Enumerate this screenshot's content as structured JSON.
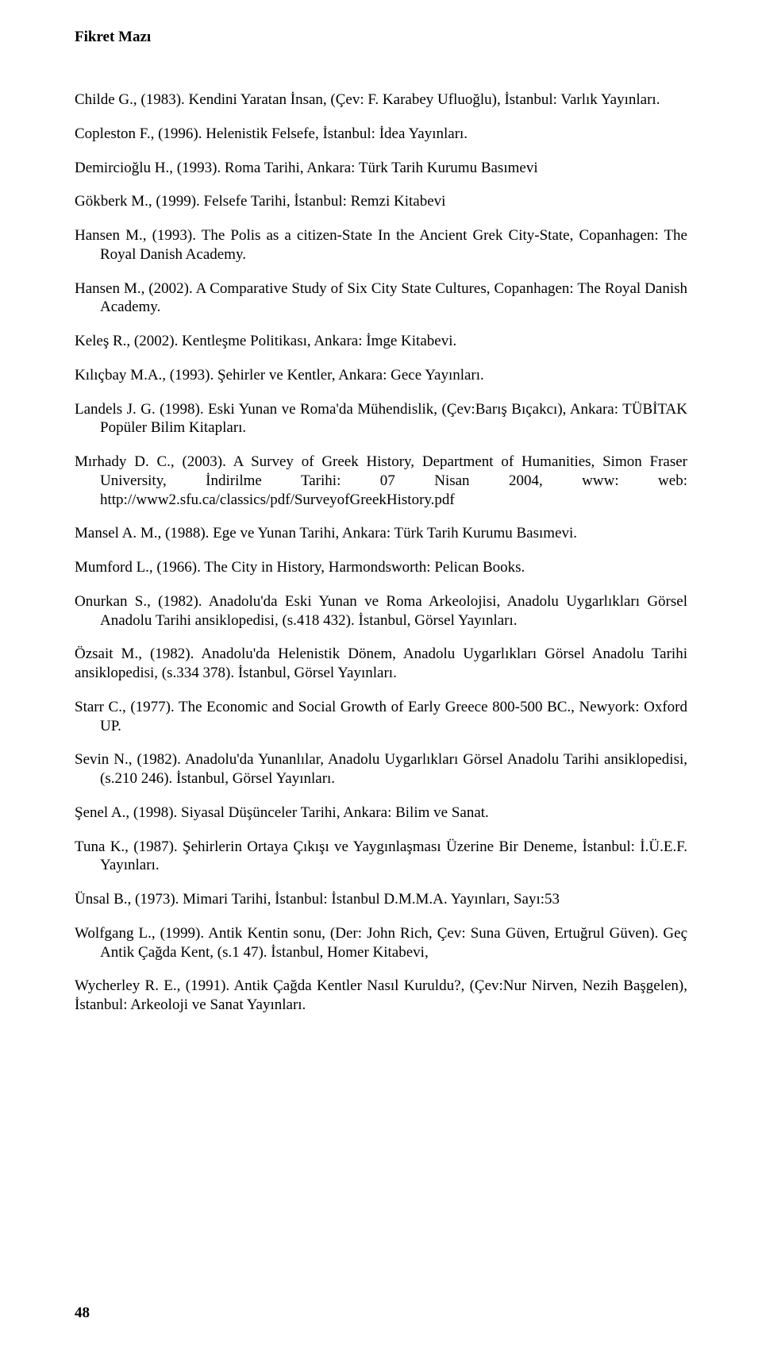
{
  "header": "Fikret Mazı",
  "pageNumber": "48",
  "refs": [
    {
      "cls": "ref",
      "text": "Childe G., (1983). Kendini Yaratan İnsan, (Çev: F. Karabey Ufluoğlu), İstanbul: Varlık Yayınları."
    },
    {
      "cls": "ref",
      "text": "Copleston F., (1996). Helenistik Felsefe, İstanbul: İdea Yayınları."
    },
    {
      "cls": "ref",
      "text": "Demircioğlu H., (1993). Roma Tarihi, Ankara: Türk Tarih Kurumu Basımevi"
    },
    {
      "cls": "ref",
      "text": "Gökberk M., (1999). Felsefe Tarihi, İstanbul: Remzi Kitabevi"
    },
    {
      "cls": "ref",
      "text": "Hansen M., (1993). The Polis as a citizen-State In the Ancient Grek City-State, Copanhagen: The Royal Danish Academy."
    },
    {
      "cls": "ref",
      "text": "Hansen M., (2002). A Comparative Study of Six City State Cultures, Copanhagen: The Royal Danish Academy."
    },
    {
      "cls": "ref",
      "text": "Keleş R., (2002). Kentleşme Politikası, Ankara: İmge Kitabevi."
    },
    {
      "cls": "ref",
      "text": "Kılıçbay M.A., (1993). Şehirler ve Kentler, Ankara: Gece Yayınları."
    },
    {
      "cls": "ref",
      "text": "Landels J. G. (1998). Eski Yunan ve Roma'da Mühendislik, (Çev:Barış Bıçakcı), Ankara: TÜBİTAK Popüler Bilim Kitapları."
    },
    {
      "cls": "ref",
      "text": "Mırhady D. C., (2003). A Survey of Greek History, Department of Humanities, Simon Fraser University, İndirilme Tarihi: 07 Nisan 2004, www: web: http://www2.sfu.ca/classics/pdf/SurveyofGreekHistory.pdf"
    },
    {
      "cls": "ref",
      "text": "Mansel A. M., (1988). Ege ve Yunan Tarihi, Ankara: Türk Tarih Kurumu Basımevi."
    },
    {
      "cls": "ref",
      "text": "Mumford L., (1966). The City in History, Harmondsworth: Pelican Books."
    },
    {
      "cls": "ref",
      "text": "Onurkan S., (1982). Anadolu'da Eski Yunan ve Roma Arkeolojisi, Anadolu Uygarlıkları Görsel Anadolu Tarihi ansiklopedisi, (s.418 432). İstanbul, Görsel Yayınları."
    },
    {
      "cls": "ref-flat",
      "text": "Özsait M., (1982). Anadolu'da Helenistik Dönem, Anadolu Uygarlıkları Görsel Anadolu Tarihi ansiklopedisi, (s.334 378). İstanbul, Görsel Yayınları."
    },
    {
      "cls": "ref",
      "text": "Starr C., (1977). The Economic and Social Growth of  Early Greece 800-500 BC., Newyork: Oxford UP."
    },
    {
      "cls": "ref",
      "text": "Sevin N., (1982). Anadolu'da Yunanlılar, Anadolu Uygarlıkları Görsel Anadolu Tarihi ansiklopedisi, (s.210 246). İstanbul, Görsel Yayınları."
    },
    {
      "cls": "ref",
      "text": "Şenel A., (1998). Siyasal Düşünceler Tarihi, Ankara: Bilim ve Sanat."
    },
    {
      "cls": "ref",
      "text": "Tuna K., (1987). Şehirlerin Ortaya Çıkışı ve Yaygınlaşması Üzerine Bir Deneme, İstanbul: İ.Ü.E.F. Yayınları."
    },
    {
      "cls": "ref",
      "text": "Ünsal B., (1973). Mimari Tarihi, İstanbul: İstanbul D.M.M.A. Yayınları, Sayı:53"
    },
    {
      "cls": "ref",
      "text": "Wolfgang L., (1999). Antik Kentin sonu, (Der: John Rich, Çev: Suna Güven, Ertuğrul Güven). Geç Antik Çağda Kent, (s.1 47). İstanbul, Homer Kitabevi,"
    },
    {
      "cls": "ref-flat",
      "text": "Wycherley R. E., (1991). Antik Çağda Kentler Nasıl Kuruldu?, (Çev:Nur Nirven, Nezih Başgelen), İstanbul: Arkeoloji ve Sanat Yayınları."
    }
  ]
}
